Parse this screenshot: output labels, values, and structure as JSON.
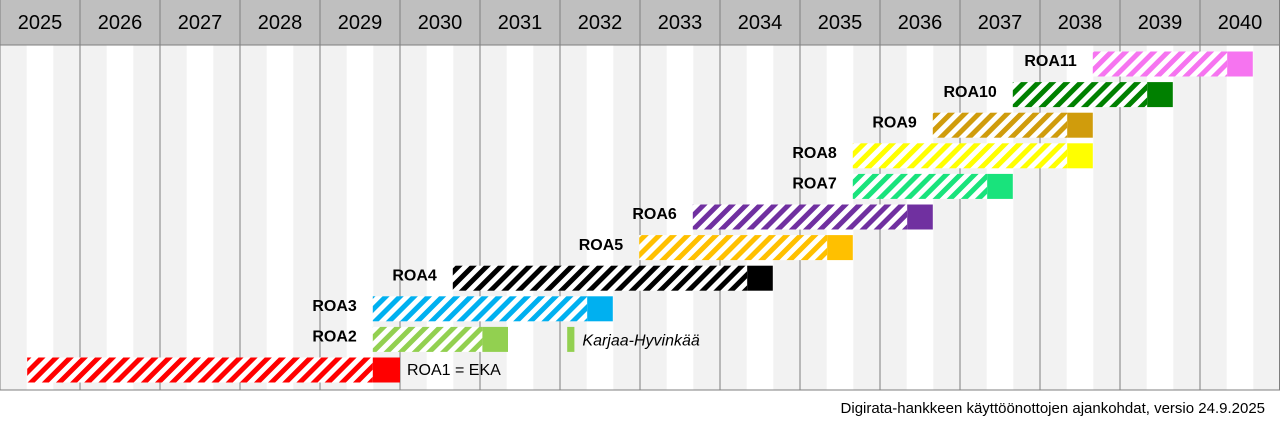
{
  "chart_data": {
    "type": "gantt",
    "xlim": [
      2025,
      2041
    ],
    "xticks": [
      2025,
      2026,
      2027,
      2028,
      2029,
      2030,
      2031,
      2032,
      2033,
      2034,
      2035,
      2036,
      2037,
      2038,
      2039,
      2040
    ],
    "series": [
      {
        "name": "ROA1 = EKA",
        "color": "#ff0000",
        "label_side": "right",
        "start": 2025.34,
        "solid_start": 2029.66,
        "end": 2030.0
      },
      {
        "name": "ROA2",
        "color": "#92d050",
        "label_side": "left",
        "start": 2029.66,
        "solid_start": 2031.03,
        "end": 2031.35
      },
      {
        "name": "ROA3",
        "color": "#00b0f0",
        "label_side": "left",
        "start": 2029.66,
        "solid_start": 2032.34,
        "end": 2032.66
      },
      {
        "name": "ROA4",
        "color": "#000000",
        "label_side": "left",
        "start": 2030.66,
        "solid_start": 2034.34,
        "end": 2034.66
      },
      {
        "name": "ROA5",
        "color": "#ffc000",
        "label_side": "left",
        "start": 2032.99,
        "solid_start": 2035.34,
        "end": 2035.66
      },
      {
        "name": "ROA6",
        "color": "#7030a0",
        "label_side": "left",
        "start": 2033.66,
        "solid_start": 2036.34,
        "end": 2036.66
      },
      {
        "name": "ROA7",
        "color": "#19e37c",
        "label_side": "left",
        "start": 2035.66,
        "solid_start": 2037.34,
        "end": 2037.66
      },
      {
        "name": "ROA8",
        "color": "#ffff00",
        "label_side": "left",
        "start": 2035.66,
        "solid_start": 2038.34,
        "end": 2038.66
      },
      {
        "name": "ROA9",
        "color": "#d09c0c",
        "label_side": "left",
        "start": 2036.66,
        "solid_start": 2038.34,
        "end": 2038.66
      },
      {
        "name": "ROA10",
        "color": "#008000",
        "label_side": "left",
        "start": 2037.66,
        "solid_start": 2039.34,
        "end": 2039.66
      },
      {
        "name": "ROA11",
        "color": "#f674f0",
        "label_side": "left",
        "start": 2038.66,
        "solid_start": 2040.34,
        "end": 2040.66
      }
    ],
    "markers": [
      {
        "label": "Karjaa-Hyvinkää",
        "row": 1,
        "color": "#92d050",
        "start": 2032.09,
        "end": 2032.18
      }
    ],
    "footnote": "Digirata-hankkeen käyttöönottojen ajankohdat, versio 24.9.2025"
  }
}
